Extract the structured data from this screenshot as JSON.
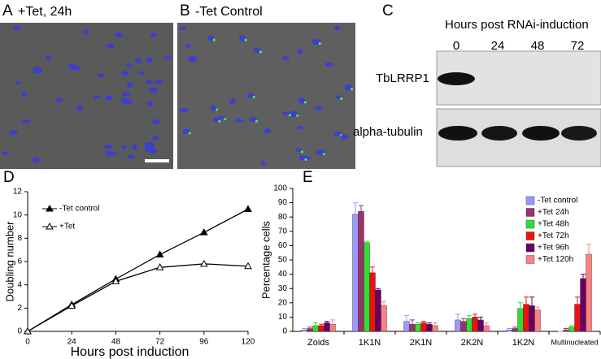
{
  "panels": {
    "a": {
      "letter": "A",
      "caption": "+Tet, 24h"
    },
    "b": {
      "letter": "B",
      "caption": "-Tet Control"
    },
    "c": {
      "letter": "C",
      "header": "Hours post RNAi-induction",
      "lanes": [
        "0",
        "24",
        "48",
        "72"
      ],
      "rows": [
        "TbLRRP1",
        "alpha-tubulin"
      ]
    },
    "d": {
      "letter": "D"
    },
    "e": {
      "letter": "E"
    }
  },
  "chart_data": [
    {
      "type": "line",
      "x_label": "Hours post induction",
      "y_label": "Doubling number",
      "x": [
        0,
        24,
        48,
        72,
        96,
        120
      ],
      "xlim": [
        0,
        120
      ],
      "xticks": [
        0,
        24,
        48,
        72,
        96,
        120
      ],
      "ylim": [
        0,
        12
      ],
      "yticks": [
        0,
        2,
        4,
        6,
        8,
        10,
        12
      ],
      "series": [
        {
          "name": "-Tet control",
          "color": "#000000",
          "marker": "filled",
          "values": [
            0,
            2.3,
            4.5,
            6.6,
            8.5,
            10.5
          ]
        },
        {
          "name": "+Tet",
          "color": "#000000",
          "marker": "open",
          "values": [
            0,
            2.2,
            4.3,
            5.5,
            5.8,
            5.6
          ]
        }
      ]
    },
    {
      "type": "bar",
      "y_label": "Percentage cells",
      "categories": [
        "Zoids",
        "1K1N",
        "2K1N",
        "2K2N",
        "1K2N",
        "Multinucleated"
      ],
      "ylim": [
        0,
        100
      ],
      "yticks": [
        0,
        10,
        20,
        30,
        40,
        50,
        60,
        70,
        80,
        90,
        100
      ],
      "series": [
        {
          "name": "-Tet control",
          "color": "#9999ff",
          "values": [
            1,
            82,
            7,
            8,
            1,
            0
          ],
          "errors": [
            1,
            8,
            4,
            4,
            1,
            0
          ]
        },
        {
          "name": "+Tet 24h",
          "color": "#993366",
          "values": [
            2,
            84,
            5,
            7,
            2,
            1
          ],
          "errors": [
            1,
            4,
            3,
            2,
            1,
            1
          ]
        },
        {
          "name": "+Tet 48h",
          "color": "#33dd33",
          "values": [
            4,
            62,
            5,
            9,
            16,
            3
          ],
          "errors": [
            2,
            1,
            1,
            2,
            4,
            1
          ]
        },
        {
          "name": "+Tet 72h",
          "color": "#ee1111",
          "values": [
            4,
            41,
            6,
            10,
            19,
            19
          ],
          "errors": [
            1,
            4,
            1,
            2,
            5,
            5
          ]
        },
        {
          "name": "+Tet 96h",
          "color": "#660066",
          "values": [
            6,
            29,
            5,
            8,
            18,
            37
          ],
          "errors": [
            1,
            1,
            1,
            2,
            6,
            3
          ]
        },
        {
          "name": "+Tet 120h",
          "color": "#ff8080",
          "values": [
            5,
            18,
            4,
            4,
            15,
            54
          ],
          "errors": [
            3,
            3,
            2,
            2,
            2,
            7
          ]
        }
      ]
    }
  ]
}
